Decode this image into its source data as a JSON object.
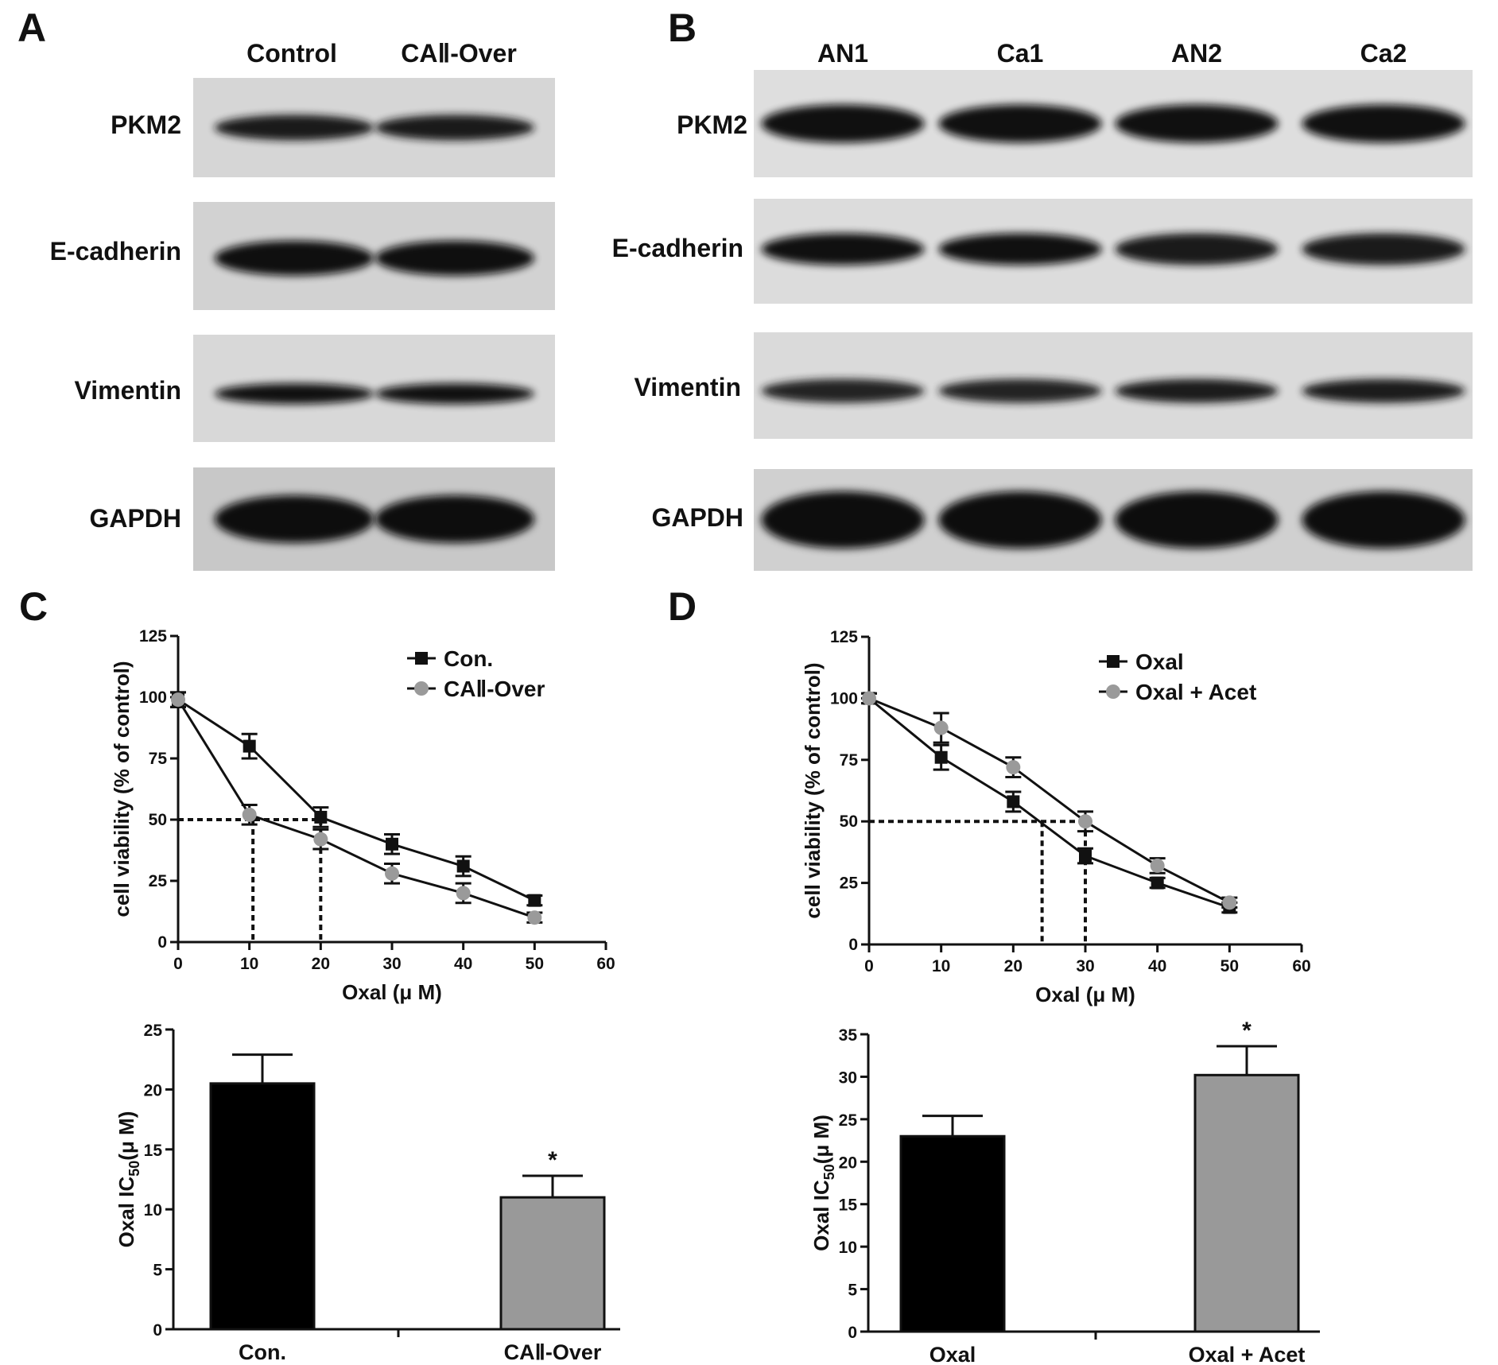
{
  "panels": {
    "A": {
      "letter": "A",
      "lanes": [
        "Control",
        "CAⅡ-Over"
      ],
      "proteins": [
        "PKM2",
        "E-cadherin",
        "Vimentin",
        "GAPDH"
      ]
    },
    "B": {
      "letter": "B",
      "lanes": [
        "AN1",
        "Ca1",
        "AN2",
        "Ca2"
      ],
      "proteins": [
        "PKM2",
        "E-cadherin",
        "Vimentin",
        "GAPDH"
      ]
    },
    "C": {
      "letter": "C"
    },
    "D": {
      "letter": "D"
    }
  },
  "blot_bands": {
    "A": [
      {
        "intensity": [
          0.75,
          0.75
        ]
      },
      {
        "intensity": [
          0.9,
          0.9
        ]
      },
      {
        "intensity": [
          0.8,
          0.8
        ]
      },
      {
        "intensity": [
          0.95,
          0.95
        ]
      }
    ],
    "B": [
      {
        "intensity": [
          0.85,
          0.85,
          0.85,
          0.85
        ]
      },
      {
        "intensity": [
          0.85,
          0.85,
          0.75,
          0.75
        ]
      },
      {
        "intensity": [
          0.6,
          0.6,
          0.7,
          0.7
        ]
      },
      {
        "intensity": [
          0.95,
          0.95,
          0.95,
          0.95
        ]
      }
    ]
  },
  "chart_data": [
    {
      "id": "C-line",
      "type": "line",
      "xlabel": "Oxal (μ M)",
      "ylabel": "cell viability (% of control)",
      "xlim": [
        0,
        60
      ],
      "ylim": [
        0,
        125
      ],
      "xticks": [
        "0",
        "10",
        "20",
        "30",
        "40",
        "50",
        "60"
      ],
      "yticks": [
        "0",
        "25",
        "50",
        "75",
        "100",
        "125"
      ],
      "legend_position": "top-right",
      "ic50_guides": [
        10.5,
        20
      ],
      "ic50_level": 50,
      "series": [
        {
          "name": "Con.",
          "marker": "square",
          "color": "#111111",
          "x": [
            0,
            10,
            20,
            30,
            40,
            50
          ],
          "y": [
            99,
            80,
            51,
            40,
            31,
            17
          ],
          "err": [
            3,
            5,
            4,
            4,
            4,
            2
          ]
        },
        {
          "name": "CAⅡ-Over",
          "marker": "circle",
          "color": "#9a9a9a",
          "x": [
            0,
            10,
            20,
            30,
            40,
            50
          ],
          "y": [
            99,
            52,
            42,
            28,
            20,
            10
          ],
          "err": [
            3,
            4,
            4,
            4,
            4,
            2
          ]
        }
      ]
    },
    {
      "id": "D-line",
      "type": "line",
      "xlabel": "Oxal (μ M)",
      "ylabel": "cell viability (% of control)",
      "xlim": [
        0,
        60
      ],
      "ylim": [
        0,
        125
      ],
      "xticks": [
        "0",
        "10",
        "20",
        "30",
        "40",
        "50",
        "60"
      ],
      "yticks": [
        "0",
        "25",
        "50",
        "75",
        "100",
        "125"
      ],
      "legend_position": "top-right",
      "ic50_guides": [
        24,
        30
      ],
      "ic50_level": 50,
      "series": [
        {
          "name": "Oxal",
          "marker": "square",
          "color": "#111111",
          "x": [
            0,
            10,
            20,
            30,
            40,
            50
          ],
          "y": [
            100,
            76,
            58,
            36,
            25,
            15
          ],
          "err": [
            2,
            5,
            4,
            3,
            2,
            2
          ]
        },
        {
          "name": "Oxal + Acet",
          "marker": "circle",
          "color": "#9a9a9a",
          "x": [
            0,
            10,
            20,
            30,
            40,
            50
          ],
          "y": [
            100,
            88,
            72,
            50,
            32,
            17
          ],
          "err": [
            2,
            6,
            4,
            4,
            3,
            2
          ]
        }
      ]
    },
    {
      "id": "C-bar",
      "type": "bar",
      "categories": [
        "Con.",
        "CAⅡ-Over"
      ],
      "values": [
        20.5,
        11
      ],
      "errors": [
        2.4,
        1.8
      ],
      "colors": [
        "#000000",
        "#999999"
      ],
      "significance": [
        "",
        "*"
      ],
      "ylabel_main": "Oxal IC",
      "ylabel_sub": "50",
      "ylabel_tail": "(μ M)",
      "ylim": [
        0,
        25
      ],
      "yticks": [
        "0",
        "5",
        "10",
        "15",
        "20",
        "25"
      ]
    },
    {
      "id": "D-bar",
      "type": "bar",
      "categories": [
        "Oxal",
        "Oxal + Acet"
      ],
      "values": [
        23,
        30.2
      ],
      "errors": [
        2.4,
        3.4
      ],
      "colors": [
        "#000000",
        "#999999"
      ],
      "significance": [
        "",
        "*"
      ],
      "ylabel_main": "Oxal IC",
      "ylabel_sub": "50",
      "ylabel_tail": "(μ M)",
      "ylim": [
        0,
        35
      ],
      "yticks": [
        "0",
        "5",
        "10",
        "15",
        "20",
        "25",
        "30",
        "35"
      ]
    }
  ]
}
